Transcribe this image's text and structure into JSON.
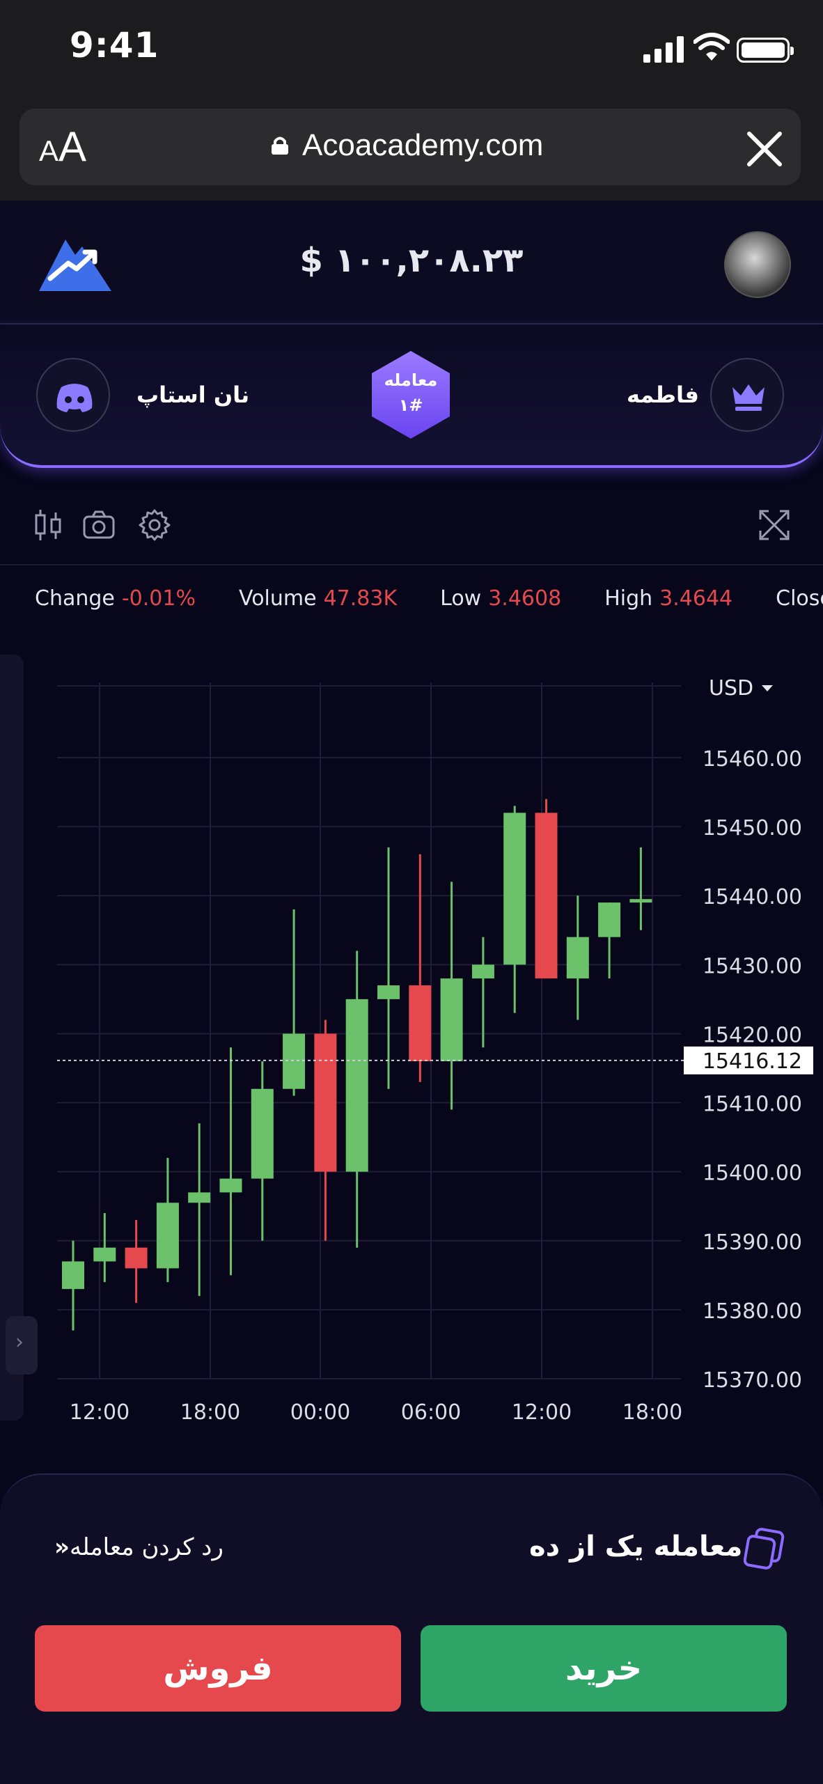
{
  "status_bar": {
    "time": "9:41"
  },
  "browser": {
    "text_size_label": "AA",
    "url": "Acoacademy.com"
  },
  "header": {
    "balance": "$ ۱۰۰,۲۰۸.۲۳"
  },
  "match": {
    "left_player": "نان استاپ",
    "right_player": "فاطمه",
    "badge_title": "معامله",
    "badge_number": "۱#"
  },
  "stats": [
    {
      "label": "Change",
      "value": "-0.01%"
    },
    {
      "label": "Volume",
      "value": "47.83K"
    },
    {
      "label": "Low",
      "value": "3.4608"
    },
    {
      "label": "High",
      "value": "3.4644"
    },
    {
      "label": "Close",
      "value": ""
    }
  ],
  "colors": {
    "up": "#6cc26a",
    "down": "#e5484d",
    "accent": "#7b5cff",
    "buy": "#2ea466",
    "sell": "#e5484d"
  },
  "chart_data": {
    "type": "candlestick",
    "currency_label": "USD",
    "ylim": [
      15370,
      15460
    ],
    "y_ticks": [
      "15460.00",
      "15450.00",
      "15440.00",
      "15430.00",
      "15420.00",
      "15410.00",
      "15400.00",
      "15390.00",
      "15380.00",
      "15370.00"
    ],
    "x_ticks": [
      "12:00",
      "18:00",
      "00:00",
      "06:00",
      "12:00",
      "18:00"
    ],
    "current_price": "15416.12",
    "candles": [
      {
        "o": 15383,
        "h": 15390,
        "l": 15377,
        "c": 15387
      },
      {
        "o": 15387,
        "h": 15394,
        "l": 15384,
        "c": 15389
      },
      {
        "o": 15389,
        "h": 15393,
        "l": 15381,
        "c": 15386
      },
      {
        "o": 15386,
        "h": 15402,
        "l": 15384,
        "c": 15395.5
      },
      {
        "o": 15395.5,
        "h": 15407,
        "l": 15382,
        "c": 15397
      },
      {
        "o": 15397,
        "h": 15418,
        "l": 15385,
        "c": 15399
      },
      {
        "o": 15399,
        "h": 15416,
        "l": 15390,
        "c": 15412
      },
      {
        "o": 15412,
        "h": 15438,
        "l": 15411,
        "c": 15420
      },
      {
        "o": 15420,
        "h": 15422,
        "l": 15390,
        "c": 15400
      },
      {
        "o": 15400,
        "h": 15432,
        "l": 15389,
        "c": 15425
      },
      {
        "o": 15425,
        "h": 15447,
        "l": 15412,
        "c": 15427
      },
      {
        "o": 15427,
        "h": 15446,
        "l": 15413,
        "c": 15416
      },
      {
        "o": 15416,
        "h": 15442,
        "l": 15409,
        "c": 15428
      },
      {
        "o": 15428,
        "h": 15434,
        "l": 15418,
        "c": 15430
      },
      {
        "o": 15430,
        "h": 15453,
        "l": 15423,
        "c": 15452
      },
      {
        "o": 15452,
        "h": 15454,
        "l": 15428,
        "c": 15428
      },
      {
        "o": 15428,
        "h": 15440,
        "l": 15422,
        "c": 15434
      },
      {
        "o": 15434,
        "h": 15439,
        "l": 15428,
        "c": 15439
      },
      {
        "o": 15439,
        "h": 15447,
        "l": 15435,
        "c": 15439.5
      }
    ]
  },
  "bottom": {
    "ten_label": "معامله یک از ده",
    "cancel_label": "رد کردن معامله",
    "sell_label": "فروش",
    "buy_label": "خرید"
  }
}
